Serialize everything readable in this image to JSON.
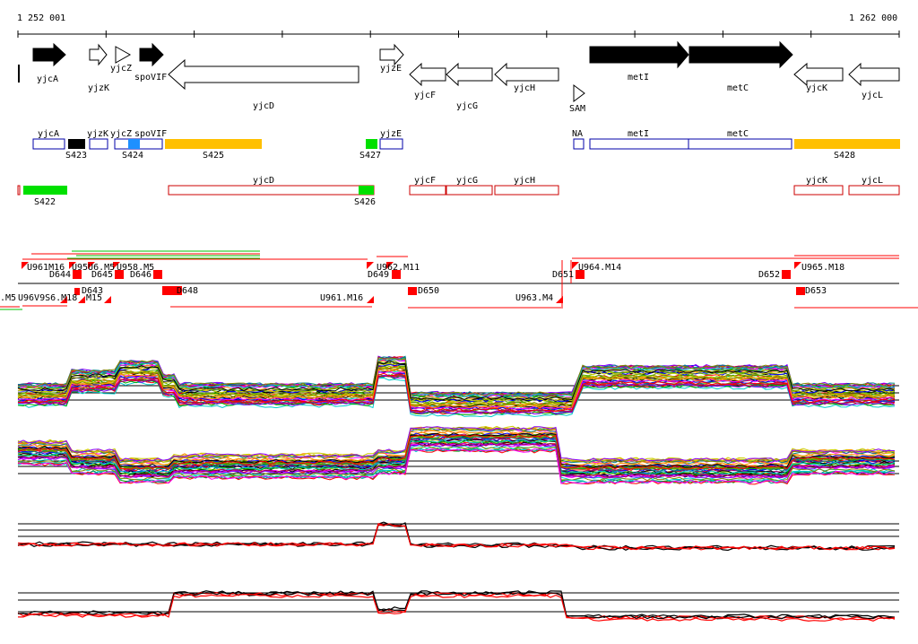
{
  "coordinates": {
    "start": "1 252 001",
    "end": "1 262 000"
  },
  "genes": [
    {
      "name": "yjcA",
      "strand": "+",
      "fill": "#000000"
    },
    {
      "name": "yjzK",
      "strand": "+",
      "fill": "#ffffff"
    },
    {
      "name": "yjcZ",
      "strand": "+",
      "fill": "#ffffff"
    },
    {
      "name": "spoVIF",
      "strand": "+",
      "fill": "#000000"
    },
    {
      "name": "yjcD",
      "strand": "-",
      "fill": "#ffffff"
    },
    {
      "name": "yjzE",
      "strand": "+",
      "fill": "#ffffff"
    },
    {
      "name": "yjcF",
      "strand": "-",
      "fill": "#ffffff"
    },
    {
      "name": "yjcG",
      "strand": "-",
      "fill": "#ffffff"
    },
    {
      "name": "yjcH",
      "strand": "-",
      "fill": "#ffffff"
    },
    {
      "name": "SAM",
      "strand": "+",
      "fill": "#ffffff"
    },
    {
      "name": "metI",
      "strand": "+",
      "fill": "#000000"
    },
    {
      "name": "metC",
      "strand": "+",
      "fill": "#000000"
    },
    {
      "name": "yjcK",
      "strand": "-",
      "fill": "#ffffff"
    },
    {
      "name": "yjcL",
      "strand": "-",
      "fill": "#ffffff"
    }
  ],
  "forward_tu_labels": [
    "yjcA",
    "yjzK",
    "yjcZ",
    "spoVIF",
    "yjzE",
    "NA",
    "metI",
    "metC"
  ],
  "reverse_tu_labels": [
    "yjcD",
    "yjcF",
    "yjcG",
    "yjcH",
    "yjcK",
    "yjcL"
  ],
  "segments": [
    "S422",
    "S423",
    "S424",
    "S425",
    "S426",
    "S427",
    "S428"
  ],
  "segment_colors": {
    "S422": "#00e000",
    "S423": "#000000",
    "S424": "#1e90ff",
    "S425": "#ffc000",
    "S426": "#00e000",
    "S427": "#00e000",
    "S428": "#ffc000"
  },
  "breakpoints": {
    "upper": [
      "U961.M16",
      "U963.M4",
      "U964.M14",
      "U965.M18"
    ],
    "down": [
      "D643",
      "D644",
      "D645",
      "D646",
      "D648",
      "D649",
      "D650",
      "D651",
      "D652",
      "D653"
    ],
    "cluttered": [
      ".M5",
      "U958.M5",
      "U962.M11",
      "M15"
    ]
  },
  "colors": {
    "forward_box": "#0000aa",
    "reverse_box": "#cc0000",
    "breakpoint": "#ff0000",
    "profile_red": "#ff0000"
  }
}
